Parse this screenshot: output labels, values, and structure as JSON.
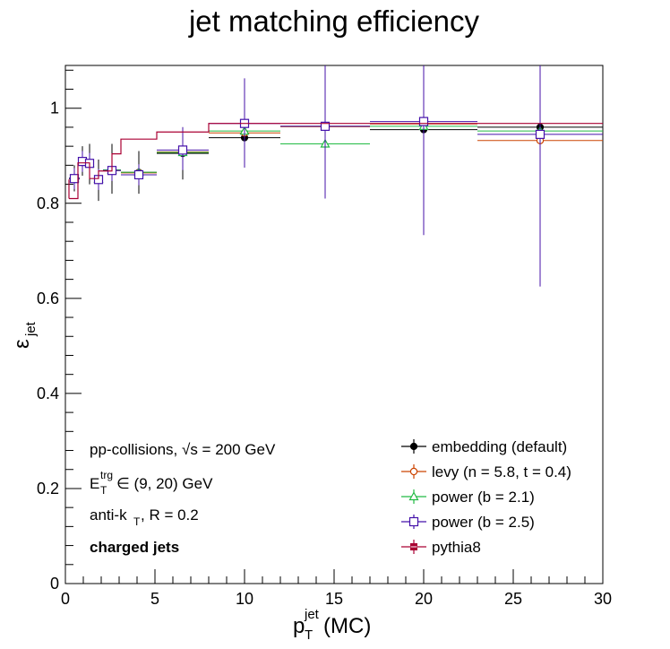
{
  "chart_data": {
    "type": "scatter",
    "title": "jet matching efficiency",
    "xlabel": {
      "main": "p",
      "sub": "T",
      "sup": "jet",
      "suffix": "(MC)"
    },
    "ylabel": {
      "main": "ε",
      "sub": "jet"
    },
    "xlim": [
      0,
      30
    ],
    "ylim": [
      0,
      1.09
    ],
    "x_ticks": [
      0,
      5,
      10,
      15,
      20,
      25,
      30
    ],
    "y_ticks": [
      0,
      0.2,
      0.4,
      0.6,
      0.8,
      1
    ],
    "x_tick_labels": [
      "0",
      "5",
      "10",
      "15",
      "20",
      "25",
      "30"
    ],
    "y_tick_labels": [
      "0",
      "0.2",
      "0.4",
      "0.6",
      "0.8",
      "1"
    ],
    "grid": false,
    "legend_position": "bottom-right",
    "annotations": {
      "line1": "pp-collisions, √s = 200 GeV",
      "line2_main": "E",
      "line2_sub": "T",
      "line2_sup": "trg",
      "line2_rest": " ∈ (9, 20) GeV",
      "line3_main": "anti-k",
      "line3_sub": "T",
      "line3_rest": ", R = 0.2",
      "line4": "charged jets"
    },
    "series": [
      {
        "name": "embedding (default)",
        "color": "#000000",
        "marker": "filled-circle",
        "points": [
          {
            "x": 0.5,
            "xlo": 0.2,
            "xhi": 0.8,
            "y": 0.853,
            "ylo": 0.825,
            "yhi": 0.88
          },
          {
            "x": 0.95,
            "xlo": 0.8,
            "xhi": 1.1,
            "y": 0.887,
            "ylo": 0.858,
            "yhi": 0.92
          },
          {
            "x": 1.35,
            "xlo": 1.1,
            "xhi": 1.6,
            "y": 0.883,
            "ylo": 0.84,
            "yhi": 0.925
          },
          {
            "x": 1.85,
            "xlo": 1.6,
            "xhi": 2.1,
            "y": 0.85,
            "ylo": 0.805,
            "yhi": 0.892
          },
          {
            "x": 2.6,
            "xlo": 2.1,
            "xhi": 3.1,
            "y": 0.87,
            "ylo": 0.82,
            "yhi": 0.925
          },
          {
            "x": 4.1,
            "xlo": 3.1,
            "xhi": 5.1,
            "y": 0.865,
            "ylo": 0.82,
            "yhi": 0.91
          },
          {
            "x": 6.55,
            "xlo": 5.1,
            "xhi": 8.0,
            "y": 0.905,
            "ylo": 0.85,
            "yhi": 0.96
          },
          {
            "x": 10.0,
            "xlo": 8.0,
            "xhi": 12.0,
            "y": 0.938,
            "ylo": 0.885,
            "yhi": 0.99
          },
          {
            "x": 14.5,
            "xlo": 12.0,
            "xhi": 17.0,
            "y": 0.962,
            "ylo": 0.9,
            "yhi": 1.02
          },
          {
            "x": 20.0,
            "xlo": 17.0,
            "xhi": 23.0,
            "y": 0.955,
            "ylo": 0.91,
            "yhi": 1.0
          },
          {
            "x": 26.5,
            "xlo": 23.0,
            "xhi": 30.0,
            "y": 0.96,
            "ylo": 0.92,
            "yhi": 1.0
          }
        ]
      },
      {
        "name": "levy (n = 5.8, t = 0.4)",
        "color": "#cc4400",
        "marker": "open-circle",
        "points": [
          {
            "x": 0.5,
            "xlo": 0.2,
            "xhi": 0.8,
            "y": 0.851,
            "ylo": 0.835,
            "yhi": 0.867
          },
          {
            "x": 0.95,
            "xlo": 0.8,
            "xhi": 1.1,
            "y": 0.886,
            "ylo": 0.87,
            "yhi": 0.902
          },
          {
            "x": 1.35,
            "xlo": 1.1,
            "xhi": 1.6,
            "y": 0.884,
            "ylo": 0.868,
            "yhi": 0.9
          },
          {
            "x": 1.85,
            "xlo": 1.6,
            "xhi": 2.1,
            "y": 0.849,
            "ylo": 0.833,
            "yhi": 0.865
          },
          {
            "x": 2.6,
            "xlo": 2.1,
            "xhi": 3.1,
            "y": 0.869,
            "ylo": 0.853,
            "yhi": 0.885
          },
          {
            "x": 4.1,
            "xlo": 3.1,
            "xhi": 5.1,
            "y": 0.864,
            "ylo": 0.848,
            "yhi": 0.88
          },
          {
            "x": 6.55,
            "xlo": 5.1,
            "xhi": 8.0,
            "y": 0.908,
            "ylo": 0.892,
            "yhi": 0.924
          },
          {
            "x": 10.0,
            "xlo": 8.0,
            "xhi": 12.0,
            "y": 0.948,
            "ylo": 0.932,
            "yhi": 0.964
          },
          {
            "x": 14.5,
            "xlo": 12.0,
            "xhi": 17.0,
            "y": 0.961,
            "ylo": 0.945,
            "yhi": 0.977
          },
          {
            "x": 20.0,
            "xlo": 17.0,
            "xhi": 23.0,
            "y": 0.967,
            "ylo": 0.951,
            "yhi": 0.983
          },
          {
            "x": 26.5,
            "xlo": 23.0,
            "xhi": 30.0,
            "y": 0.932,
            "ylo": 0.916,
            "yhi": 0.948
          }
        ]
      },
      {
        "name": "power (b = 2.1)",
        "color": "#22bb44",
        "marker": "open-triangle",
        "points": [
          {
            "x": 0.5,
            "xlo": 0.2,
            "xhi": 0.8,
            "y": 0.852,
            "ylo": 0.836,
            "yhi": 0.868
          },
          {
            "x": 0.95,
            "xlo": 0.8,
            "xhi": 1.1,
            "y": 0.887,
            "ylo": 0.871,
            "yhi": 0.903
          },
          {
            "x": 1.35,
            "xlo": 1.1,
            "xhi": 1.6,
            "y": 0.884,
            "ylo": 0.868,
            "yhi": 0.9
          },
          {
            "x": 1.85,
            "xlo": 1.6,
            "xhi": 2.1,
            "y": 0.851,
            "ylo": 0.835,
            "yhi": 0.867
          },
          {
            "x": 2.6,
            "xlo": 2.1,
            "xhi": 3.1,
            "y": 0.87,
            "ylo": 0.854,
            "yhi": 0.886
          },
          {
            "x": 4.1,
            "xlo": 3.1,
            "xhi": 5.1,
            "y": 0.865,
            "ylo": 0.849,
            "yhi": 0.881
          },
          {
            "x": 6.55,
            "xlo": 5.1,
            "xhi": 8.0,
            "y": 0.907,
            "ylo": 0.891,
            "yhi": 0.923
          },
          {
            "x": 10.0,
            "xlo": 8.0,
            "xhi": 12.0,
            "y": 0.952,
            "ylo": 0.936,
            "yhi": 0.968
          },
          {
            "x": 14.5,
            "xlo": 12.0,
            "xhi": 17.0,
            "y": 0.925,
            "ylo": 0.909,
            "yhi": 0.941
          },
          {
            "x": 20.0,
            "xlo": 17.0,
            "xhi": 23.0,
            "y": 0.962,
            "ylo": 0.946,
            "yhi": 0.978
          },
          {
            "x": 26.5,
            "xlo": 23.0,
            "xhi": 30.0,
            "y": 0.952,
            "ylo": 0.936,
            "yhi": 0.968
          }
        ]
      },
      {
        "name": "power (b = 2.5)",
        "color": "#4411aa",
        "marker": "open-square",
        "points": [
          {
            "x": 0.5,
            "xlo": 0.2,
            "xhi": 0.8,
            "y": 0.852,
            "ylo": 0.83,
            "yhi": 0.874
          },
          {
            "x": 0.95,
            "xlo": 0.8,
            "xhi": 1.1,
            "y": 0.888,
            "ylo": 0.866,
            "yhi": 0.91
          },
          {
            "x": 1.35,
            "xlo": 1.1,
            "xhi": 1.6,
            "y": 0.884,
            "ylo": 0.862,
            "yhi": 0.906
          },
          {
            "x": 1.85,
            "xlo": 1.6,
            "xhi": 2.1,
            "y": 0.85,
            "ylo": 0.828,
            "yhi": 0.872
          },
          {
            "x": 2.6,
            "xlo": 2.1,
            "xhi": 3.1,
            "y": 0.869,
            "ylo": 0.847,
            "yhi": 0.891
          },
          {
            "x": 4.1,
            "xlo": 3.1,
            "xhi": 5.1,
            "y": 0.86,
            "ylo": 0.838,
            "yhi": 0.882
          },
          {
            "x": 6.55,
            "xlo": 5.1,
            "xhi": 8.0,
            "y": 0.912,
            "ylo": 0.87,
            "yhi": 0.96
          },
          {
            "x": 10.0,
            "xlo": 8.0,
            "xhi": 12.0,
            "y": 0.968,
            "ylo": 0.875,
            "yhi": 1.063
          },
          {
            "x": 14.5,
            "xlo": 12.0,
            "xhi": 17.0,
            "y": 0.962,
            "ylo": 0.81,
            "yhi": 1.09
          },
          {
            "x": 20.0,
            "xlo": 17.0,
            "xhi": 23.0,
            "y": 0.972,
            "ylo": 0.733,
            "yhi": 1.09
          },
          {
            "x": 26.5,
            "xlo": 23.0,
            "xhi": 30.0,
            "y": 0.945,
            "ylo": 0.625,
            "yhi": 1.09
          }
        ]
      },
      {
        "name": "pythia8",
        "color": "#aa0033",
        "marker": "step-line",
        "steps": [
          {
            "xlo": 0.2,
            "xhi": 0.7,
            "y": 0.81
          },
          {
            "xlo": 0.7,
            "xhi": 1.35,
            "y": 0.885
          },
          {
            "xlo": 1.35,
            "xhi": 1.85,
            "y": 0.852
          },
          {
            "xlo": 1.85,
            "xhi": 2.6,
            "y": 0.868
          },
          {
            "xlo": 2.6,
            "xhi": 3.1,
            "y": 0.904
          },
          {
            "xlo": 3.1,
            "xhi": 5.1,
            "y": 0.935
          },
          {
            "xlo": 5.1,
            "xhi": 8.0,
            "y": 0.95
          },
          {
            "xlo": 8.0,
            "xhi": 30.0,
            "y": 0.968
          }
        ],
        "legend_marker_color": "#aa0033"
      }
    ]
  }
}
